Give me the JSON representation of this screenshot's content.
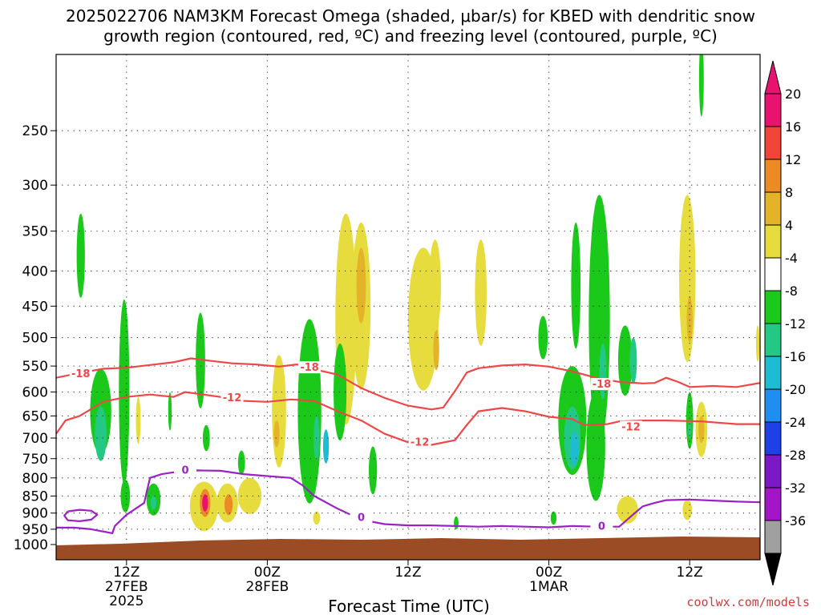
{
  "header": {
    "title_line1": "2025022706 NAM3KM Forecast Omega (shaded, μbar/s) for KBED with dendritic snow",
    "title_line2": "growth region (contoured, red, ºC) and freezing level (contoured, purple, ºC)"
  },
  "footer": {
    "xlabel": "Forecast Time (UTC)",
    "credit": "coolwx.com/models"
  },
  "chart_data": {
    "type": "heatmap",
    "title": "2025022706 NAM3KM Forecast Omega (shaded, μbar/s) for KBED with dendritic snow growth region (contoured, red, ºC) and freezing level (contoured, purple, ºC)",
    "xlabel": "Forecast Time (UTC)",
    "ylabel": "",
    "x_range_hours_from_init": [
      0,
      60
    ],
    "y_range_hpa": [
      1000,
      200
    ],
    "y_scale": "log-pressure",
    "grid": true,
    "y_ticks": [
      250,
      300,
      350,
      400,
      450,
      500,
      550,
      600,
      650,
      700,
      750,
      800,
      850,
      900,
      950,
      1000
    ],
    "x_ticks": [
      {
        "hour": 6,
        "lines": [
          "12Z",
          "27FEB",
          "2025"
        ]
      },
      {
        "hour": 18,
        "lines": [
          "00Z",
          "28FEB"
        ]
      },
      {
        "hour": 30,
        "lines": [
          "12Z"
        ]
      },
      {
        "hour": 42,
        "lines": [
          "00Z",
          "1MAR"
        ]
      },
      {
        "hour": 54,
        "lines": [
          "12Z"
        ]
      }
    ],
    "colorbar": {
      "labels": [
        "20",
        "16",
        "12",
        "8",
        "4",
        "-4",
        "-8",
        "-12",
        "-16",
        "-20",
        "-24",
        "-28",
        "-32",
        "-36"
      ],
      "colors": [
        "#e8136f",
        "#f2453a",
        "#ec8a25",
        "#e4b328",
        "#e6dc3e",
        "#ffffff",
        "#1bc91b",
        "#23c885",
        "#1dbcd3",
        "#1e8ff0",
        "#1f40e6",
        "#7b18c8",
        "#a315c8",
        "#a0a0a0"
      ]
    },
    "omega_regions": [
      {
        "t": 2.1,
        "p": 380,
        "dt": 0.35,
        "dp": 50,
        "value": -6
      },
      {
        "t": 3.8,
        "p": 640,
        "dt": 0.9,
        "dp": 85,
        "value": -6
      },
      {
        "t": 3.8,
        "p": 690,
        "dt": 0.5,
        "dp": 60,
        "value": -10
      },
      {
        "t": 5.8,
        "p": 600,
        "dt": 0.45,
        "dp": 160,
        "value": -6
      },
      {
        "t": 5.9,
        "p": 850,
        "dt": 0.4,
        "dp": 45,
        "value": -6
      },
      {
        "t": 7.0,
        "p": 660,
        "dt": 0.2,
        "dp": 50,
        "value": 6
      },
      {
        "t": 8.3,
        "p": 860,
        "dt": 0.6,
        "dp": 45,
        "value": -6
      },
      {
        "t": 8.3,
        "p": 870,
        "dt": 0.25,
        "dp": 20,
        "value": -10
      },
      {
        "t": 9.7,
        "p": 640,
        "dt": 0.15,
        "dp": 40,
        "value": -6
      },
      {
        "t": 12.3,
        "p": 540,
        "dt": 0.4,
        "dp": 80,
        "value": -6
      },
      {
        "t": 12.8,
        "p": 700,
        "dt": 0.3,
        "dp": 30,
        "value": -6
      },
      {
        "t": 12.6,
        "p": 880,
        "dt": 1.2,
        "dp": 70,
        "value": 6
      },
      {
        "t": 12.7,
        "p": 870,
        "dt": 0.45,
        "dp": 40,
        "value": 14
      },
      {
        "t": 12.7,
        "p": 870,
        "dt": 0.25,
        "dp": 25,
        "value": 22
      },
      {
        "t": 14.6,
        "p": 870,
        "dt": 0.9,
        "dp": 55,
        "value": 6
      },
      {
        "t": 14.7,
        "p": 875,
        "dt": 0.35,
        "dp": 30,
        "value": 14
      },
      {
        "t": 15.8,
        "p": 760,
        "dt": 0.3,
        "dp": 30,
        "value": -6
      },
      {
        "t": 16.5,
        "p": 850,
        "dt": 1.0,
        "dp": 50,
        "value": 6
      },
      {
        "t": 19.0,
        "p": 640,
        "dt": 0.6,
        "dp": 110,
        "value": 6
      },
      {
        "t": 18.8,
        "p": 690,
        "dt": 0.25,
        "dp": 30,
        "value": 10
      },
      {
        "t": 21.6,
        "p": 640,
        "dt": 1.0,
        "dp": 170,
        "value": -6
      },
      {
        "t": 22.2,
        "p": 700,
        "dt": 0.25,
        "dp": 50,
        "value": -10
      },
      {
        "t": 23.0,
        "p": 720,
        "dt": 0.25,
        "dp": 40,
        "value": -14
      },
      {
        "t": 22.2,
        "p": 915,
        "dt": 0.3,
        "dp": 20,
        "value": 6
      },
      {
        "t": 24.7,
        "p": 470,
        "dt": 0.9,
        "dp": 140,
        "value": 6
      },
      {
        "t": 26.0,
        "p": 450,
        "dt": 0.8,
        "dp": 110,
        "value": 6
      },
      {
        "t": 26.0,
        "p": 420,
        "dt": 0.4,
        "dp": 50,
        "value": 10
      },
      {
        "t": 24.2,
        "p": 600,
        "dt": 0.55,
        "dp": 90,
        "value": -6
      },
      {
        "t": 27.0,
        "p": 780,
        "dt": 0.35,
        "dp": 60,
        "value": -6
      },
      {
        "t": 31.3,
        "p": 470,
        "dt": 1.3,
        "dp": 100,
        "value": 6
      },
      {
        "t": 32.4,
        "p": 520,
        "dt": 0.25,
        "dp": 35,
        "value": 10
      },
      {
        "t": 32.3,
        "p": 420,
        "dt": 0.5,
        "dp": 60,
        "value": 6
      },
      {
        "t": 36.2,
        "p": 430,
        "dt": 0.5,
        "dp": 70,
        "value": 6
      },
      {
        "t": 34.1,
        "p": 930,
        "dt": 0.2,
        "dp": 20,
        "value": -6
      },
      {
        "t": 41.5,
        "p": 500,
        "dt": 0.4,
        "dp": 35,
        "value": -6
      },
      {
        "t": 42.4,
        "p": 915,
        "dt": 0.25,
        "dp": 20,
        "value": -6
      },
      {
        "t": 44.3,
        "p": 420,
        "dt": 0.4,
        "dp": 80,
        "value": -6
      },
      {
        "t": 44.0,
        "p": 660,
        "dt": 1.2,
        "dp": 110,
        "value": -6
      },
      {
        "t": 44.0,
        "p": 700,
        "dt": 0.7,
        "dp": 70,
        "value": -10
      },
      {
        "t": 44.2,
        "p": 725,
        "dt": 0.35,
        "dp": 40,
        "value": -14
      },
      {
        "t": 46.3,
        "p": 470,
        "dt": 0.9,
        "dp": 160,
        "value": -6
      },
      {
        "t": 46.6,
        "p": 560,
        "dt": 0.3,
        "dp": 50,
        "value": -10
      },
      {
        "t": 46.0,
        "p": 720,
        "dt": 0.8,
        "dp": 120,
        "value": -6
      },
      {
        "t": 48.5,
        "p": 540,
        "dt": 0.6,
        "dp": 60,
        "value": -6
      },
      {
        "t": 49.2,
        "p": 540,
        "dt": 0.3,
        "dp": 40,
        "value": -10
      },
      {
        "t": 48.7,
        "p": 890,
        "dt": 0.9,
        "dp": 40,
        "value": 6
      },
      {
        "t": 53.8,
        "p": 410,
        "dt": 0.7,
        "dp": 100,
        "value": 6
      },
      {
        "t": 54.0,
        "p": 470,
        "dt": 0.25,
        "dp": 35,
        "value": 10
      },
      {
        "t": 55.0,
        "p": 210,
        "dt": 0.2,
        "dp": 25,
        "value": -6
      },
      {
        "t": 54.0,
        "p": 660,
        "dt": 0.3,
        "dp": 60,
        "value": -6
      },
      {
        "t": 54.0,
        "p": 680,
        "dt": 0.15,
        "dp": 20,
        "value": -10
      },
      {
        "t": 55.0,
        "p": 680,
        "dt": 0.5,
        "dp": 60,
        "value": 6
      },
      {
        "t": 55.0,
        "p": 680,
        "dt": 0.25,
        "dp": 30,
        "value": 10
      },
      {
        "t": 53.8,
        "p": 890,
        "dt": 0.4,
        "dp": 30,
        "value": 6
      },
      {
        "t": 59.8,
        "p": 510,
        "dt": 0.15,
        "dp": 30,
        "value": 6
      }
    ],
    "contours": [
      {
        "name": "-18",
        "color": "#ee4747",
        "levels_label": "-18",
        "points": [
          [
            0,
            572
          ],
          [
            2,
            563
          ],
          [
            4,
            555
          ],
          [
            6,
            553
          ],
          [
            8,
            548
          ],
          [
            10,
            543
          ],
          [
            11.5,
            536
          ],
          [
            13,
            540
          ],
          [
            15,
            545
          ],
          [
            17,
            547
          ],
          [
            19,
            551
          ],
          [
            20.5,
            547
          ],
          [
            22,
            556
          ],
          [
            24,
            566
          ],
          [
            26,
            592
          ],
          [
            28,
            612
          ],
          [
            30,
            628
          ],
          [
            32,
            636
          ],
          [
            33,
            632
          ],
          [
            34,
            598
          ],
          [
            35,
            562
          ],
          [
            36,
            554
          ],
          [
            38,
            549
          ],
          [
            40,
            547
          ],
          [
            42,
            551
          ],
          [
            44,
            560
          ],
          [
            46,
            572
          ],
          [
            48,
            580
          ],
          [
            50,
            583
          ],
          [
            51,
            582
          ],
          [
            52,
            572
          ],
          [
            53,
            580
          ],
          [
            54,
            590
          ],
          [
            56,
            588
          ],
          [
            58,
            590
          ],
          [
            60,
            582
          ]
        ],
        "labels": [
          [
            2.1,
            565
          ],
          [
            21.6,
            553
          ],
          [
            46.5,
            585
          ]
        ]
      },
      {
        "name": "-12",
        "color": "#ee4747",
        "levels_label": "-12",
        "points": [
          [
            0,
            690
          ],
          [
            0.8,
            660
          ],
          [
            2,
            650
          ],
          [
            3,
            635
          ],
          [
            4,
            620
          ],
          [
            6,
            610
          ],
          [
            8,
            605
          ],
          [
            10,
            610
          ],
          [
            11,
            600
          ],
          [
            14,
            610
          ],
          [
            16,
            618
          ],
          [
            18,
            620
          ],
          [
            20,
            615
          ],
          [
            22,
            618
          ],
          [
            24,
            640
          ],
          [
            26,
            660
          ],
          [
            28,
            690
          ],
          [
            30,
            710
          ],
          [
            32,
            716
          ],
          [
            34,
            705
          ],
          [
            35,
            670
          ],
          [
            36,
            640
          ],
          [
            38,
            633
          ],
          [
            40,
            640
          ],
          [
            42,
            652
          ],
          [
            44,
            657
          ],
          [
            45,
            670
          ],
          [
            47,
            668
          ],
          [
            48,
            662
          ],
          [
            50,
            660
          ],
          [
            52,
            660
          ],
          [
            55,
            662
          ],
          [
            58,
            668
          ],
          [
            60,
            668
          ]
        ],
        "labels": [
          [
            15,
            612
          ],
          [
            31,
            710
          ],
          [
            49,
            675
          ]
        ]
      },
      {
        "name": "0",
        "color": "#9a22c4",
        "levels_label": "0",
        "points": [
          [
            0,
            945
          ],
          [
            1.5,
            945
          ],
          [
            3,
            950
          ],
          [
            4.8,
            963
          ],
          [
            5,
            940
          ],
          [
            6,
            905
          ],
          [
            7.5,
            870
          ],
          [
            8,
            800
          ],
          [
            9,
            790
          ],
          [
            10,
            785
          ],
          [
            12,
            780
          ],
          [
            14,
            781
          ],
          [
            16,
            790
          ],
          [
            18,
            795
          ],
          [
            20,
            800
          ],
          [
            21,
            820
          ],
          [
            22,
            850
          ],
          [
            24,
            887
          ],
          [
            26,
            920
          ],
          [
            28,
            934
          ],
          [
            30,
            938
          ],
          [
            32,
            938
          ],
          [
            34,
            940
          ],
          [
            36,
            942
          ],
          [
            38,
            940
          ],
          [
            40,
            942
          ],
          [
            42,
            944
          ],
          [
            44,
            940
          ],
          [
            46,
            942
          ],
          [
            48,
            942
          ],
          [
            49,
            910
          ],
          [
            50,
            880
          ],
          [
            51,
            870
          ],
          [
            52,
            862
          ],
          [
            54,
            860
          ],
          [
            56,
            863
          ],
          [
            58,
            866
          ],
          [
            60,
            868
          ]
        ],
        "labels": [
          [
            11,
            780
          ],
          [
            26,
            914
          ],
          [
            46.5,
            942
          ]
        ]
      },
      {
        "name": "0-loop",
        "color": "#9a22c4",
        "levels_label": "",
        "points": [
          [
            1,
            895
          ],
          [
            2,
            890
          ],
          [
            3,
            893
          ],
          [
            3.5,
            905
          ],
          [
            3,
            920
          ],
          [
            2,
            925
          ],
          [
            1,
            922
          ],
          [
            0.7,
            908
          ],
          [
            1,
            895
          ]
        ],
        "labels": []
      }
    ]
  }
}
